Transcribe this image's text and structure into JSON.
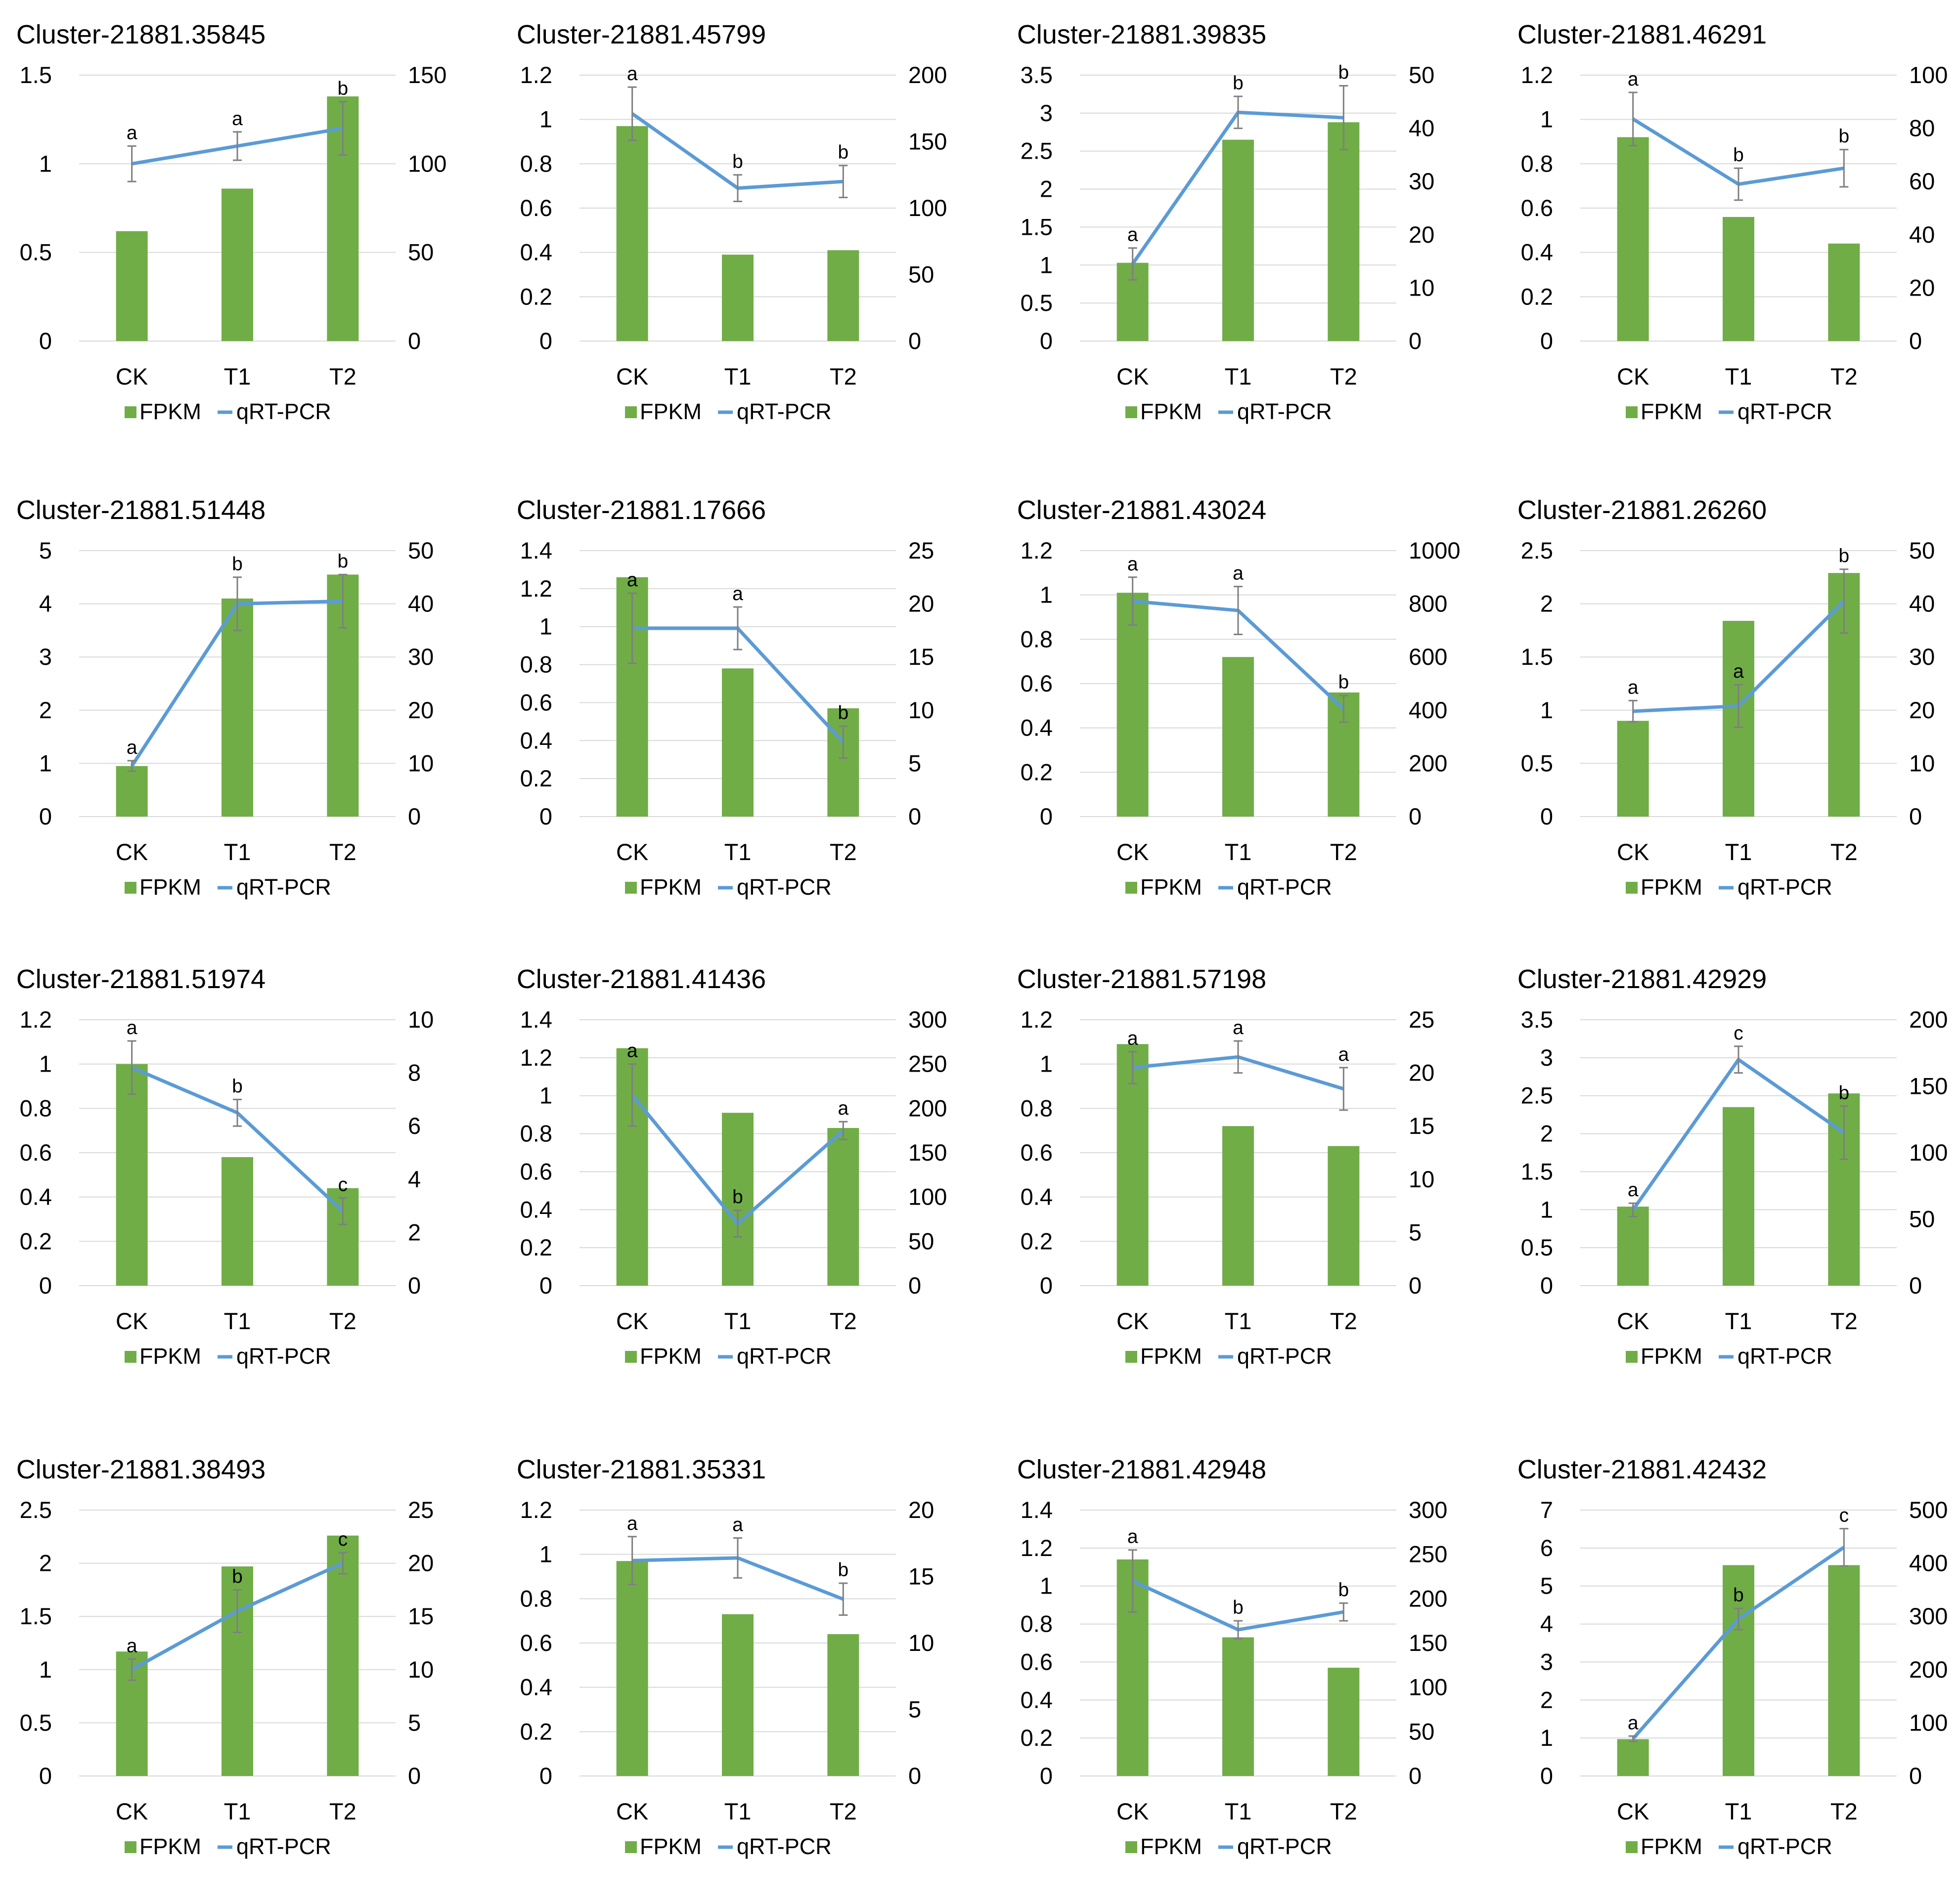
{
  "colors": {
    "bar": "#70AD47",
    "line": "#5B9BD5",
    "errorbar": "#7F7F7F",
    "gridline": "#D9D9D9",
    "text": "#000000"
  },
  "legend": {
    "bar_label": "FPKM",
    "line_label": "qRT-PCR"
  },
  "chart_data": [
    {
      "type": "bar+line",
      "title": "Cluster-21881.35845",
      "categories": [
        "CK",
        "T1",
        "T2"
      ],
      "left_axis": {
        "min": 0,
        "max": 1.5,
        "ticks": [
          "0",
          "0.5",
          "1",
          "1.5"
        ]
      },
      "right_axis": {
        "min": 0,
        "max": 150,
        "ticks": [
          "0",
          "50",
          "100",
          "150"
        ]
      },
      "series": [
        {
          "name": "FPKM",
          "axis": "left",
          "values": [
            0.62,
            0.86,
            1.38
          ]
        },
        {
          "name": "qRT-PCR",
          "axis": "right",
          "values": [
            100,
            110,
            120
          ],
          "errors": [
            10,
            8,
            15
          ],
          "significance": [
            "a",
            "a",
            "b"
          ]
        }
      ]
    },
    {
      "type": "bar+line",
      "title": "Cluster-21881.45799",
      "categories": [
        "CK",
        "T1",
        "T2"
      ],
      "left_axis": {
        "min": 0,
        "max": 1.2,
        "ticks": [
          "0",
          "0.2",
          "0.4",
          "0.6",
          "0.8",
          "1",
          "1.2"
        ]
      },
      "right_axis": {
        "min": 0,
        "max": 200,
        "ticks": [
          "0",
          "50",
          "100",
          "150",
          "200"
        ]
      },
      "series": [
        {
          "name": "FPKM",
          "axis": "left",
          "values": [
            0.97,
            0.39,
            0.41
          ]
        },
        {
          "name": "qRT-PCR",
          "axis": "right",
          "values": [
            171,
            115,
            120
          ],
          "errors": [
            20,
            10,
            12
          ],
          "significance": [
            "a",
            "b",
            "b"
          ]
        }
      ]
    },
    {
      "type": "bar+line",
      "title": "Cluster-21881.39835",
      "categories": [
        "CK",
        "T1",
        "T2"
      ],
      "left_axis": {
        "min": 0,
        "max": 3.5,
        "ticks": [
          "0",
          "0.5",
          "1",
          "1.5",
          "2",
          "2.5",
          "3",
          "3.5"
        ]
      },
      "right_axis": {
        "min": 0,
        "max": 50,
        "ticks": [
          "0",
          "10",
          "20",
          "30",
          "40",
          "50"
        ]
      },
      "series": [
        {
          "name": "FPKM",
          "axis": "left",
          "values": [
            1.03,
            2.65,
            2.88
          ]
        },
        {
          "name": "qRT-PCR",
          "axis": "right",
          "values": [
            14.5,
            43,
            42
          ],
          "errors": [
            3,
            3,
            6
          ],
          "significance": [
            "a",
            "b",
            "b"
          ]
        }
      ]
    },
    {
      "type": "bar+line",
      "title": "Cluster-21881.46291",
      "categories": [
        "CK",
        "T1",
        "T2"
      ],
      "left_axis": {
        "min": 0,
        "max": 1.2,
        "ticks": [
          "0",
          "0.2",
          "0.4",
          "0.6",
          "0.8",
          "1",
          "1.2"
        ]
      },
      "right_axis": {
        "min": 0,
        "max": 100,
        "ticks": [
          "0",
          "20",
          "40",
          "60",
          "80",
          "100"
        ]
      },
      "series": [
        {
          "name": "FPKM",
          "axis": "left",
          "values": [
            0.92,
            0.56,
            0.44
          ]
        },
        {
          "name": "qRT-PCR",
          "axis": "right",
          "values": [
            83.5,
            59,
            65
          ],
          "errors": [
            10,
            6,
            7
          ],
          "significance": [
            "a",
            "b",
            "b"
          ]
        }
      ]
    },
    {
      "type": "bar+line",
      "title": "Cluster-21881.51448",
      "categories": [
        "CK",
        "T1",
        "T2"
      ],
      "left_axis": {
        "min": 0,
        "max": 5,
        "ticks": [
          "0",
          "1",
          "2",
          "3",
          "4",
          "5"
        ]
      },
      "right_axis": {
        "min": 0,
        "max": 50,
        "ticks": [
          "0",
          "10",
          "20",
          "30",
          "40",
          "50"
        ]
      },
      "series": [
        {
          "name": "FPKM",
          "axis": "left",
          "values": [
            0.95,
            4.1,
            4.55
          ]
        },
        {
          "name": "qRT-PCR",
          "axis": "right",
          "values": [
            9.5,
            40,
            40.5
          ],
          "errors": [
            1,
            5,
            5
          ],
          "significance": [
            "a",
            "b",
            "b"
          ]
        }
      ]
    },
    {
      "type": "bar+line",
      "title": "Cluster-21881.17666",
      "categories": [
        "CK",
        "T1",
        "T2"
      ],
      "left_axis": {
        "min": 0,
        "max": 1.4,
        "ticks": [
          "0",
          "0.2",
          "0.4",
          "0.6",
          "0.8",
          "1",
          "1.2",
          "1.4"
        ]
      },
      "right_axis": {
        "min": 0,
        "max": 25,
        "ticks": [
          "0",
          "5",
          "10",
          "15",
          "20",
          "25"
        ]
      },
      "series": [
        {
          "name": "FPKM",
          "axis": "left",
          "values": [
            1.26,
            0.78,
            0.57
          ]
        },
        {
          "name": "qRT-PCR",
          "axis": "right",
          "values": [
            17.7,
            17.7,
            7
          ],
          "errors": [
            3.3,
            2,
            1.5
          ],
          "significance": [
            "a",
            "a",
            "b"
          ]
        }
      ]
    },
    {
      "type": "bar+line",
      "title": "Cluster-21881.43024",
      "categories": [
        "CK",
        "T1",
        "T2"
      ],
      "left_axis": {
        "min": 0,
        "max": 1.2,
        "ticks": [
          "0",
          "0.2",
          "0.4",
          "0.6",
          "0.8",
          "1",
          "1.2"
        ]
      },
      "right_axis": {
        "min": 0,
        "max": 1000,
        "ticks": [
          "0",
          "200",
          "400",
          "600",
          "800",
          "1000"
        ]
      },
      "series": [
        {
          "name": "FPKM",
          "axis": "left",
          "values": [
            1.01,
            0.72,
            0.56
          ]
        },
        {
          "name": "qRT-PCR",
          "axis": "right",
          "values": [
            810,
            775,
            405
          ],
          "errors": [
            90,
            90,
            50
          ],
          "significance": [
            "a",
            "a",
            "b"
          ]
        }
      ]
    },
    {
      "type": "bar+line",
      "title": "Cluster-21881.26260",
      "categories": [
        "CK",
        "T1",
        "T2"
      ],
      "left_axis": {
        "min": 0,
        "max": 2.5,
        "ticks": [
          "0",
          "0.5",
          "1",
          "1.5",
          "2",
          "2.5"
        ]
      },
      "right_axis": {
        "min": 0,
        "max": 50,
        "ticks": [
          "0",
          "10",
          "20",
          "30",
          "40",
          "50"
        ]
      },
      "series": [
        {
          "name": "FPKM",
          "axis": "left",
          "values": [
            0.9,
            1.84,
            2.29
          ]
        },
        {
          "name": "qRT-PCR",
          "axis": "right",
          "values": [
            19.8,
            20.8,
            40.5
          ],
          "errors": [
            2,
            4,
            6
          ],
          "significance": [
            "a",
            "a",
            "b"
          ]
        }
      ]
    },
    {
      "type": "bar+line",
      "title": "Cluster-21881.51974",
      "categories": [
        "CK",
        "T1",
        "T2"
      ],
      "left_axis": {
        "min": 0,
        "max": 1.2,
        "ticks": [
          "0",
          "0.2",
          "0.4",
          "0.6",
          "0.8",
          "1",
          "1.2"
        ]
      },
      "right_axis": {
        "min": 0,
        "max": 10,
        "ticks": [
          "0",
          "2",
          "4",
          "6",
          "8",
          "10"
        ]
      },
      "series": [
        {
          "name": "FPKM",
          "axis": "left",
          "values": [
            1.0,
            0.58,
            0.44
          ]
        },
        {
          "name": "qRT-PCR",
          "axis": "right",
          "values": [
            8.2,
            6.5,
            2.8
          ],
          "errors": [
            1,
            0.5,
            0.5
          ],
          "significance": [
            "a",
            "b",
            "c"
          ]
        }
      ]
    },
    {
      "type": "bar+line",
      "title": "Cluster-21881.41436",
      "categories": [
        "CK",
        "T1",
        "T2"
      ],
      "left_axis": {
        "min": 0,
        "max": 1.4,
        "ticks": [
          "0",
          "0.2",
          "0.4",
          "0.6",
          "0.8",
          "1",
          "1.2",
          "1.4"
        ]
      },
      "right_axis": {
        "min": 0,
        "max": 300,
        "ticks": [
          "0",
          "50",
          "100",
          "150",
          "200",
          "250",
          "300"
        ]
      },
      "series": [
        {
          "name": "FPKM",
          "axis": "left",
          "values": [
            1.25,
            0.91,
            0.83
          ]
        },
        {
          "name": "qRT-PCR",
          "axis": "right",
          "values": [
            215,
            70,
            175
          ],
          "errors": [
            35,
            15,
            10
          ],
          "significance": [
            "a",
            "b",
            "a"
          ]
        }
      ]
    },
    {
      "type": "bar+line",
      "title": "Cluster-21881.57198",
      "categories": [
        "CK",
        "T1",
        "T2"
      ],
      "left_axis": {
        "min": 0,
        "max": 1.2,
        "ticks": [
          "0",
          "0.2",
          "0.4",
          "0.6",
          "0.8",
          "1",
          "1.2"
        ]
      },
      "right_axis": {
        "min": 0,
        "max": 25,
        "ticks": [
          "0",
          "5",
          "10",
          "15",
          "20",
          "25"
        ]
      },
      "series": [
        {
          "name": "FPKM",
          "axis": "left",
          "values": [
            1.09,
            0.72,
            0.63
          ]
        },
        {
          "name": "qRT-PCR",
          "axis": "right",
          "values": [
            20.5,
            21.5,
            18.5
          ],
          "errors": [
            1.5,
            1.5,
            2
          ],
          "significance": [
            "a",
            "a",
            "a"
          ]
        }
      ]
    },
    {
      "type": "bar+line",
      "title": "Cluster-21881.42929",
      "categories": [
        "CK",
        "T1",
        "T2"
      ],
      "left_axis": {
        "min": 0,
        "max": 3.5,
        "ticks": [
          "0",
          "0.5",
          "1",
          "1.5",
          "2",
          "2.5",
          "3",
          "3.5"
        ]
      },
      "right_axis": {
        "min": 0,
        "max": 200,
        "ticks": [
          "0",
          "50",
          "100",
          "150",
          "200"
        ]
      },
      "series": [
        {
          "name": "FPKM",
          "axis": "left",
          "values": [
            1.04,
            2.35,
            2.53
          ]
        },
        {
          "name": "qRT-PCR",
          "axis": "right",
          "values": [
            57,
            170,
            115
          ],
          "errors": [
            5,
            10,
            20
          ],
          "significance": [
            "a",
            "c",
            "b"
          ]
        }
      ]
    },
    {
      "type": "bar+line",
      "title": "Cluster-21881.38493",
      "categories": [
        "CK",
        "T1",
        "T2"
      ],
      "left_axis": {
        "min": 0,
        "max": 2.5,
        "ticks": [
          "0",
          "0.5",
          "1",
          "1.5",
          "2",
          "2.5"
        ]
      },
      "right_axis": {
        "min": 0,
        "max": 25,
        "ticks": [
          "0",
          "5",
          "10",
          "15",
          "20",
          "25"
        ]
      },
      "series": [
        {
          "name": "FPKM",
          "axis": "left",
          "values": [
            1.17,
            1.97,
            2.26
          ]
        },
        {
          "name": "qRT-PCR",
          "axis": "right",
          "values": [
            10,
            15.5,
            20
          ],
          "errors": [
            1,
            2,
            1
          ],
          "significance": [
            "a",
            "b",
            "c"
          ]
        }
      ]
    },
    {
      "type": "bar+line",
      "title": "Cluster-21881.35331",
      "categories": [
        "CK",
        "T1",
        "T2"
      ],
      "left_axis": {
        "min": 0,
        "max": 1.2,
        "ticks": [
          "0",
          "0.2",
          "0.4",
          "0.6",
          "0.8",
          "1",
          "1.2"
        ]
      },
      "right_axis": {
        "min": 0,
        "max": 20,
        "ticks": [
          "0",
          "5",
          "10",
          "15",
          "20"
        ]
      },
      "series": [
        {
          "name": "FPKM",
          "axis": "left",
          "values": [
            0.97,
            0.73,
            0.64
          ]
        },
        {
          "name": "qRT-PCR",
          "axis": "right",
          "values": [
            16.2,
            16.4,
            13.3
          ],
          "errors": [
            1.8,
            1.5,
            1.2
          ],
          "significance": [
            "a",
            "a",
            "b"
          ]
        }
      ]
    },
    {
      "type": "bar+line",
      "title": "Cluster-21881.42948",
      "categories": [
        "CK",
        "T1",
        "T2"
      ],
      "left_axis": {
        "min": 0,
        "max": 1.4,
        "ticks": [
          "0",
          "0.2",
          "0.4",
          "0.6",
          "0.8",
          "1",
          "1.2",
          "1.4"
        ]
      },
      "right_axis": {
        "min": 0,
        "max": 300,
        "ticks": [
          "0",
          "50",
          "100",
          "150",
          "200",
          "250",
          "300"
        ]
      },
      "series": [
        {
          "name": "FPKM",
          "axis": "left",
          "values": [
            1.14,
            0.73,
            0.57
          ]
        },
        {
          "name": "qRT-PCR",
          "axis": "right",
          "values": [
            220,
            165,
            185
          ],
          "errors": [
            35,
            10,
            10
          ],
          "significance": [
            "a",
            "b",
            "b"
          ]
        }
      ]
    },
    {
      "type": "bar+line",
      "title": "Cluster-21881.42432",
      "categories": [
        "CK",
        "T1",
        "T2"
      ],
      "left_axis": {
        "min": 0,
        "max": 7,
        "ticks": [
          "0",
          "1",
          "2",
          "3",
          "4",
          "5",
          "6",
          "7"
        ]
      },
      "right_axis": {
        "min": 0,
        "max": 500,
        "ticks": [
          "0",
          "100",
          "200",
          "300",
          "400",
          "500"
        ]
      },
      "series": [
        {
          "name": "FPKM",
          "axis": "left",
          "values": [
            0.97,
            5.55,
            5.55
          ]
        },
        {
          "name": "qRT-PCR",
          "axis": "right",
          "values": [
            70,
            295,
            430
          ],
          "errors": [
            5,
            20,
            35
          ],
          "significance": [
            "a",
            "b",
            "c"
          ]
        }
      ]
    }
  ]
}
